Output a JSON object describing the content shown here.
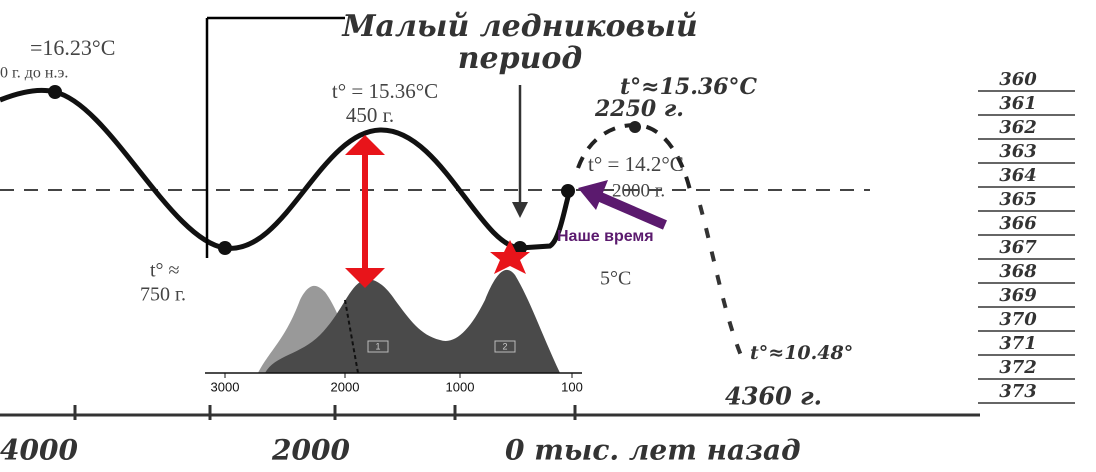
{
  "title": {
    "line1": "Малый ледниковый",
    "line2": "период"
  },
  "annotations": {
    "left_temp": "=16.23°C",
    "left_date": "0 г. до н.э.",
    "peak_temp": "t° = 15.36°C",
    "peak_date": "450 г.",
    "trough_temp": "t° ≈",
    "trough_date": "750 г.",
    "future_peak_temp": "t°≈15.36°C",
    "future_peak_date": "2250 г.",
    "now_temp": "t° = 14.2°C",
    "now_date": "2000 г.",
    "now_label": "Наше время",
    "partial_temp": "5°C",
    "future_low_temp": "t°≈10.48°",
    "future_low_date": "4360 г."
  },
  "inset": {
    "x_ticks": [
      "3000",
      "2000",
      "1000",
      "100"
    ],
    "peak_labels": [
      "1",
      "2"
    ]
  },
  "bottom_axis": {
    "labels": [
      "4000",
      "2000",
      "0 тыс. лет назад"
    ]
  },
  "side_list": [
    "360",
    "361",
    "362",
    "363",
    "364",
    "365",
    "366",
    "367",
    "368",
    "369",
    "370",
    "371",
    "372",
    "373"
  ]
}
